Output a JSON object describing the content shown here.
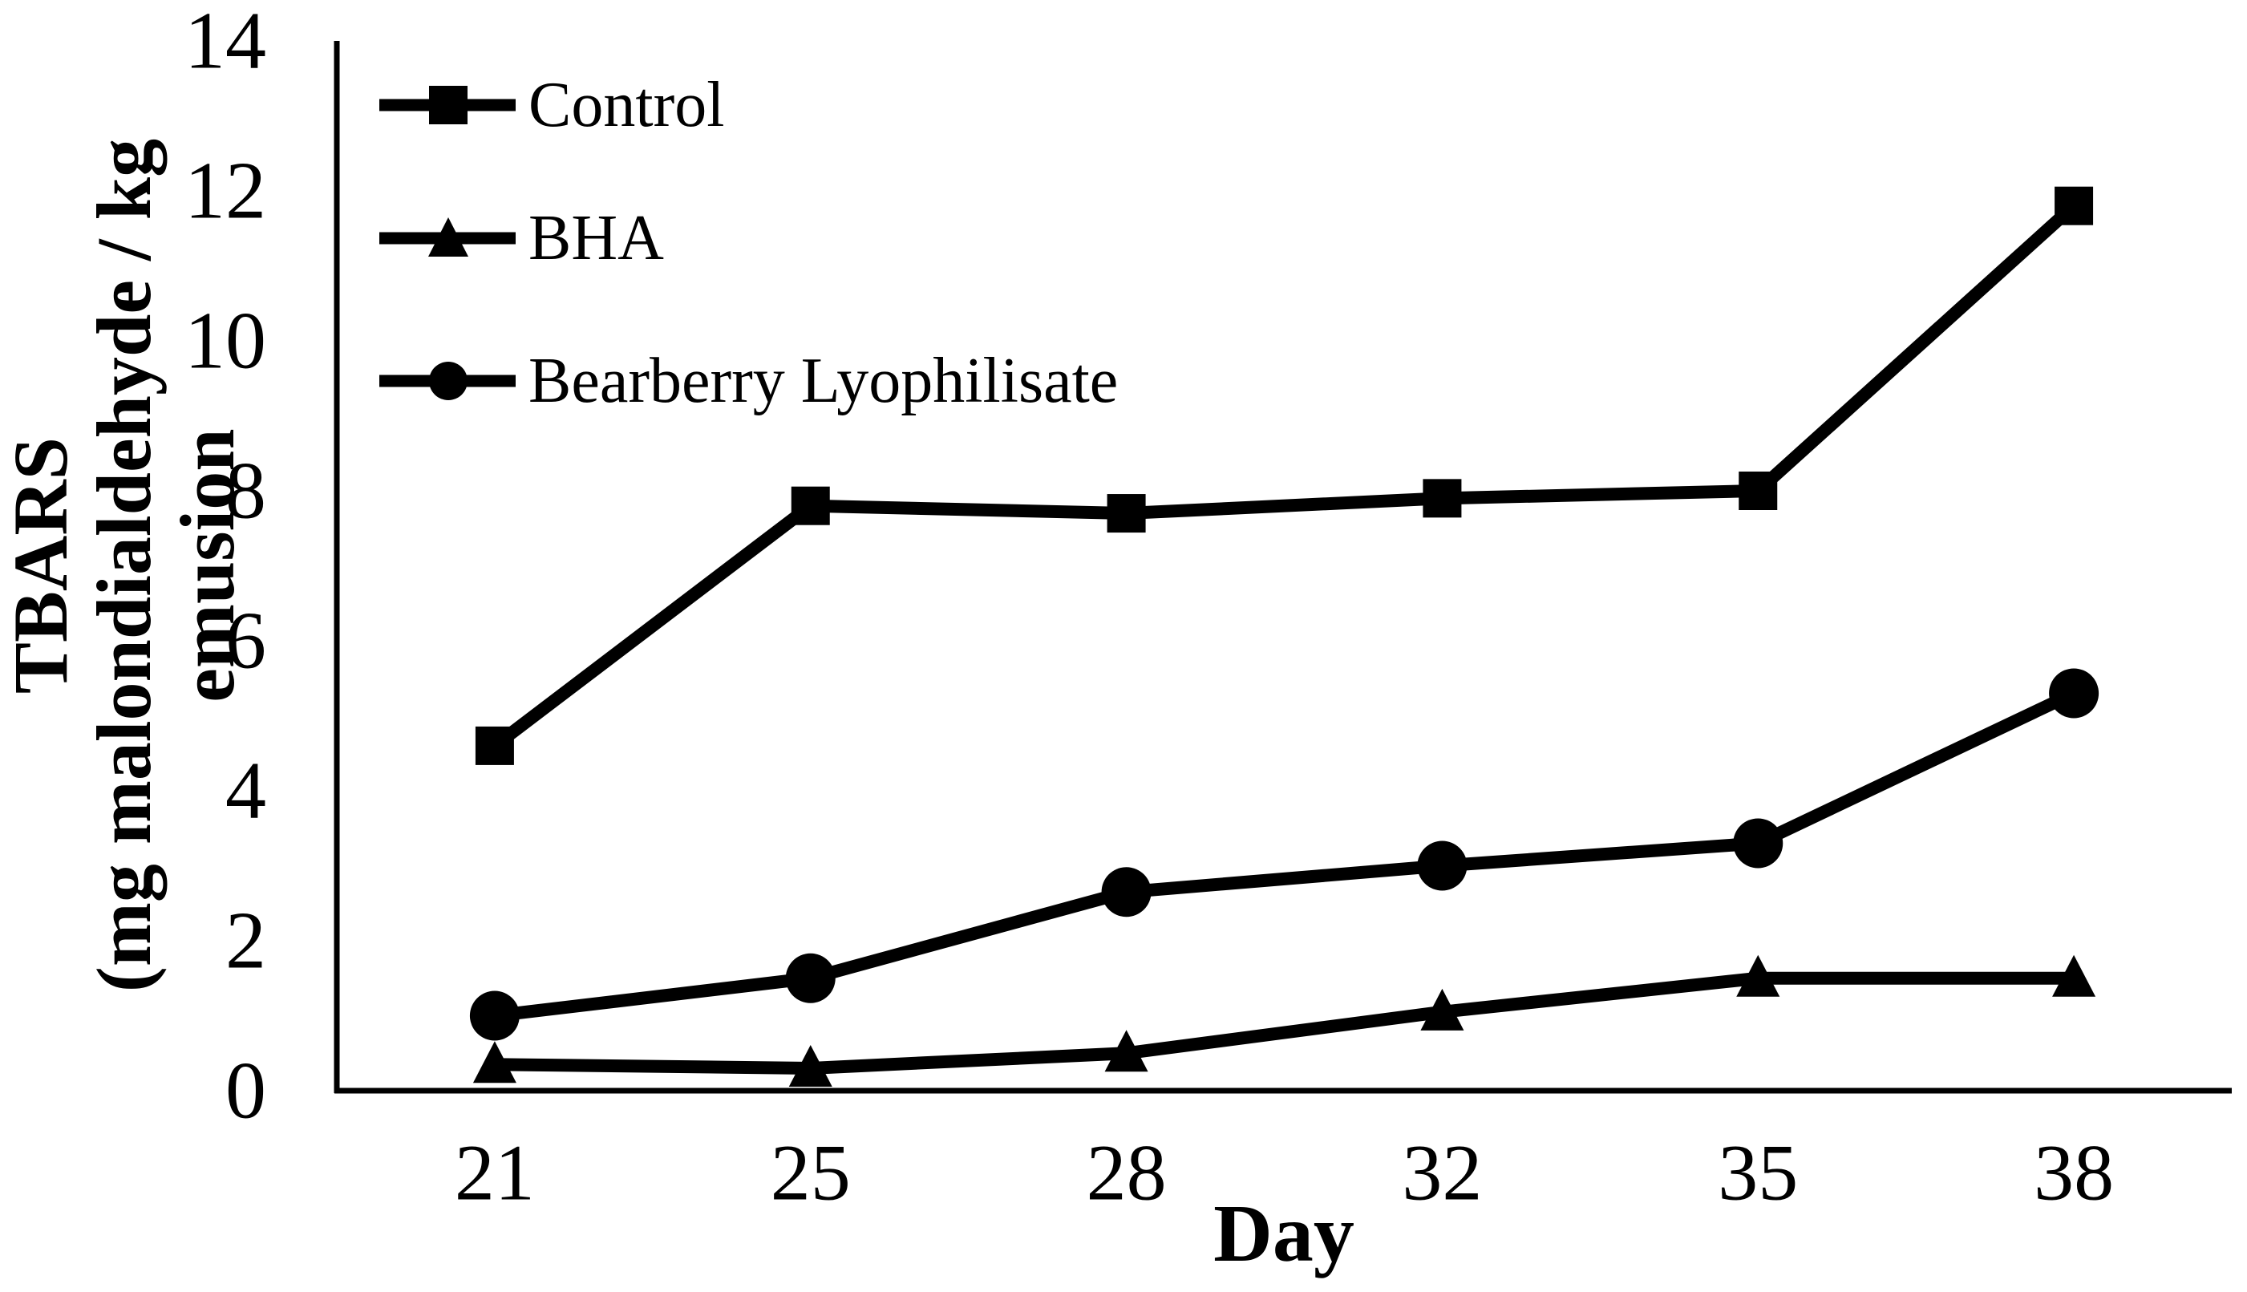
{
  "figure": {
    "background": "#ffffff",
    "ink_color": "#000000"
  },
  "chart_data": {
    "type": "line",
    "title": "",
    "xlabel": "Day",
    "ylabel_lines": [
      "TBARS",
      "(mg malondialdehyde / kg",
      "emusion"
    ],
    "ylabel_text": "TBARS (mg malondialdehyde / kg emusion",
    "categories": [
      "21",
      "25",
      "28",
      "32",
      "35",
      "38"
    ],
    "yticks": [
      "0",
      "2",
      "4",
      "6",
      "8",
      "10",
      "12",
      "14"
    ],
    "ylim": [
      0,
      14
    ],
    "grid": false,
    "legend_position": "upper-left-inside",
    "series": [
      {
        "name": "Control",
        "marker": "square",
        "color": "#000000",
        "values": [
          4.6,
          7.8,
          7.7,
          7.9,
          8.0,
          11.8
        ]
      },
      {
        "name": "BHA",
        "marker": "triangle",
        "color": "#000000",
        "values": [
          0.35,
          0.3,
          0.5,
          1.05,
          1.5,
          1.5
        ]
      },
      {
        "name": "Bearberry Lyophilisate",
        "marker": "circle",
        "color": "#000000",
        "values": [
          1.0,
          1.5,
          2.65,
          3.0,
          3.3,
          5.3
        ]
      }
    ]
  }
}
